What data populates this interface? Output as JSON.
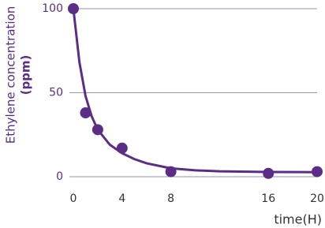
{
  "chart_data": {
    "type": "scatter",
    "ylabel": [
      "Ethylene concentration",
      "(ppm)"
    ],
    "xlabel": "time(H)",
    "xlim": [
      0,
      20
    ],
    "ylim": [
      0,
      100
    ],
    "xticks": [
      0,
      4,
      8,
      16,
      20
    ],
    "yticks": [
      0,
      50,
      100
    ],
    "grid": true,
    "series": [
      {
        "color": "#5b2d86",
        "style": "markers",
        "x": [
          0,
          1,
          2,
          4,
          8,
          16,
          20
        ],
        "values": [
          100,
          38,
          28,
          17,
          3,
          2,
          3
        ]
      },
      {
        "color": "#5b2d86",
        "style": "line",
        "x": [
          0,
          0.5,
          1,
          1.5,
          2,
          3,
          4,
          5,
          6,
          8,
          10,
          12,
          16,
          20
        ],
        "values": [
          100,
          68,
          48,
          36,
          28,
          19,
          14,
          10.5,
          8,
          5,
          3.8,
          3.2,
          2.8,
          2.7
        ]
      }
    ]
  }
}
